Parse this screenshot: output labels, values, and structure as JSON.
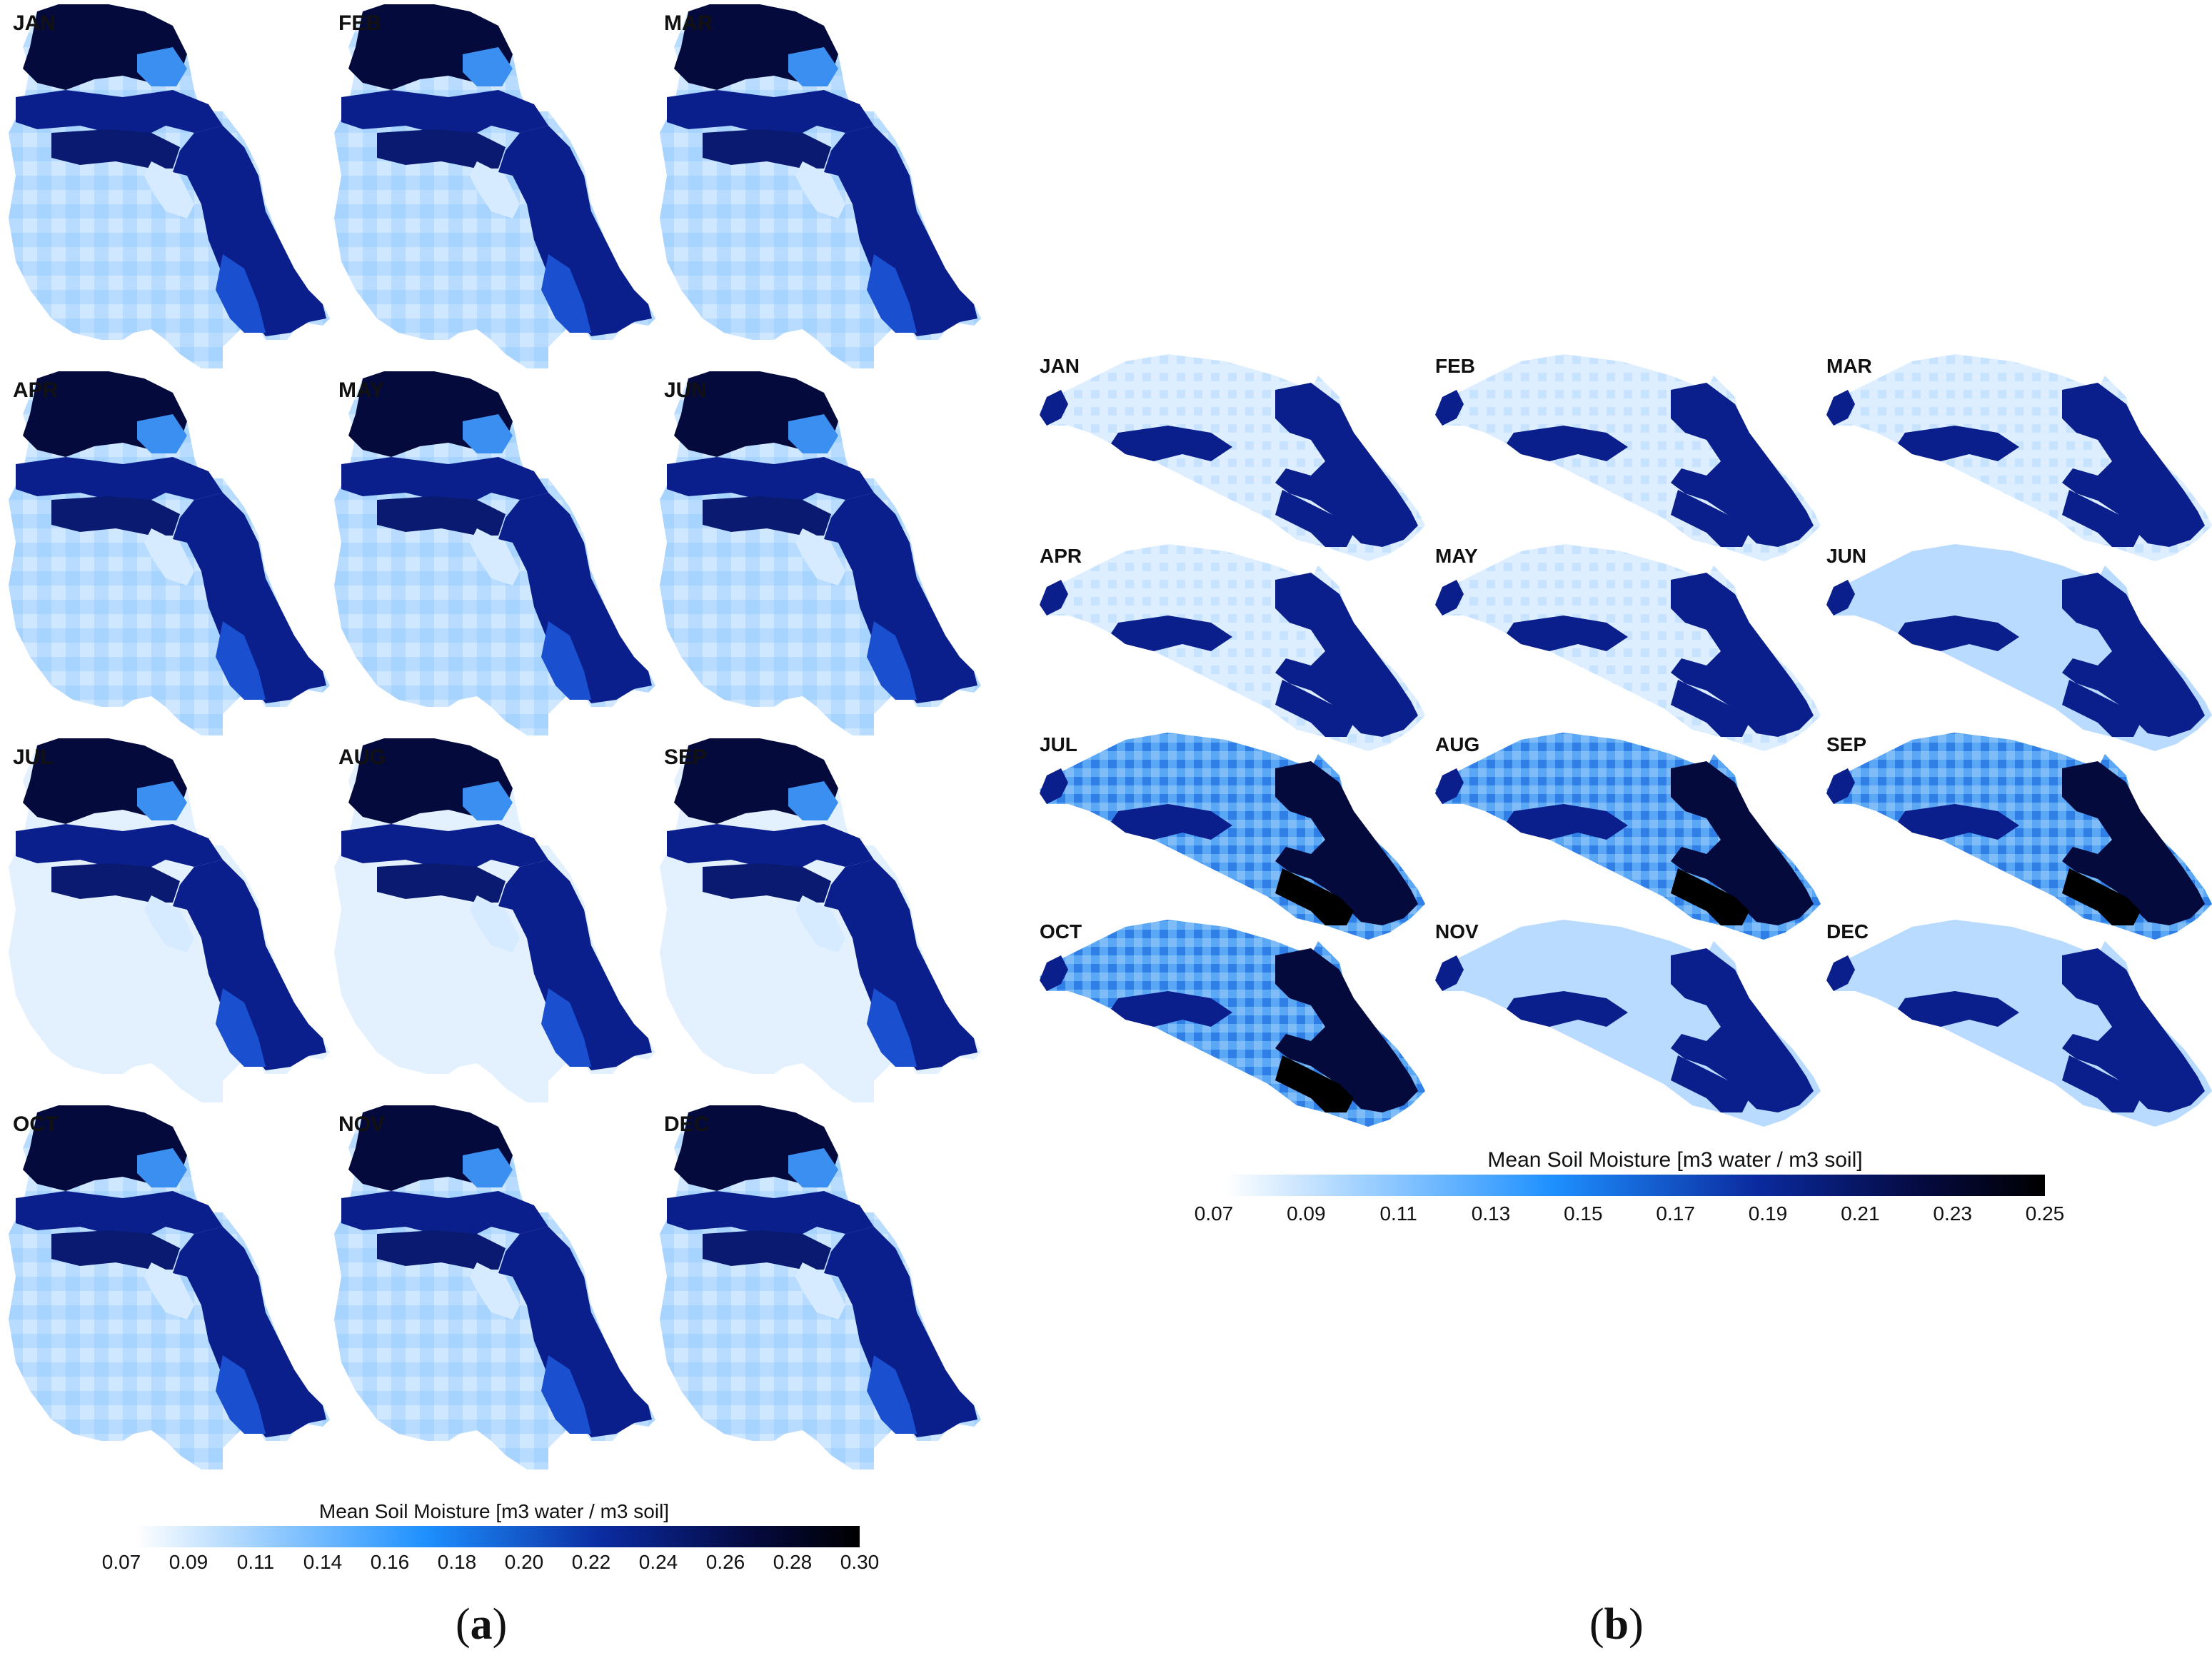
{
  "panel_a": {
    "letter": "a",
    "months": [
      "JAN",
      "FEB",
      "MAR",
      "APR",
      "MAY",
      "JUN",
      "JUL",
      "AUG",
      "SEP",
      "OCT",
      "NOV",
      "DEC"
    ],
    "colorbar": {
      "title": "Mean Soil Moisture [m3 water / m3 soil]",
      "ticks": [
        "0.07",
        "0.09",
        "0.11",
        "0.14",
        "0.16",
        "0.18",
        "0.20",
        "0.22",
        "0.24",
        "0.26",
        "0.28",
        "0.30"
      ]
    }
  },
  "panel_b": {
    "letter": "b",
    "months": [
      "JAN",
      "FEB",
      "MAR",
      "APR",
      "MAY",
      "JUN",
      "JUL",
      "AUG",
      "SEP",
      "OCT",
      "NOV",
      "DEC"
    ],
    "colorbar": {
      "title": "Mean Soil Moisture [m3 water / m3 soil]",
      "ticks": [
        "0.07",
        "0.09",
        "0.11",
        "0.13",
        "0.15",
        "0.17",
        "0.19",
        "0.21",
        "0.23",
        "0.25"
      ]
    }
  },
  "colors": {
    "colormap": [
      "#ffffff",
      "#8ec8ff",
      "#1e90ff",
      "#0a2a9e",
      "#050a40",
      "#000000"
    ],
    "light_fill": "#cfe7ff",
    "dark_fill": "#0b1f8c",
    "darkest_fill": "#050a3c",
    "accent_fill": "#3a8ff0"
  }
}
